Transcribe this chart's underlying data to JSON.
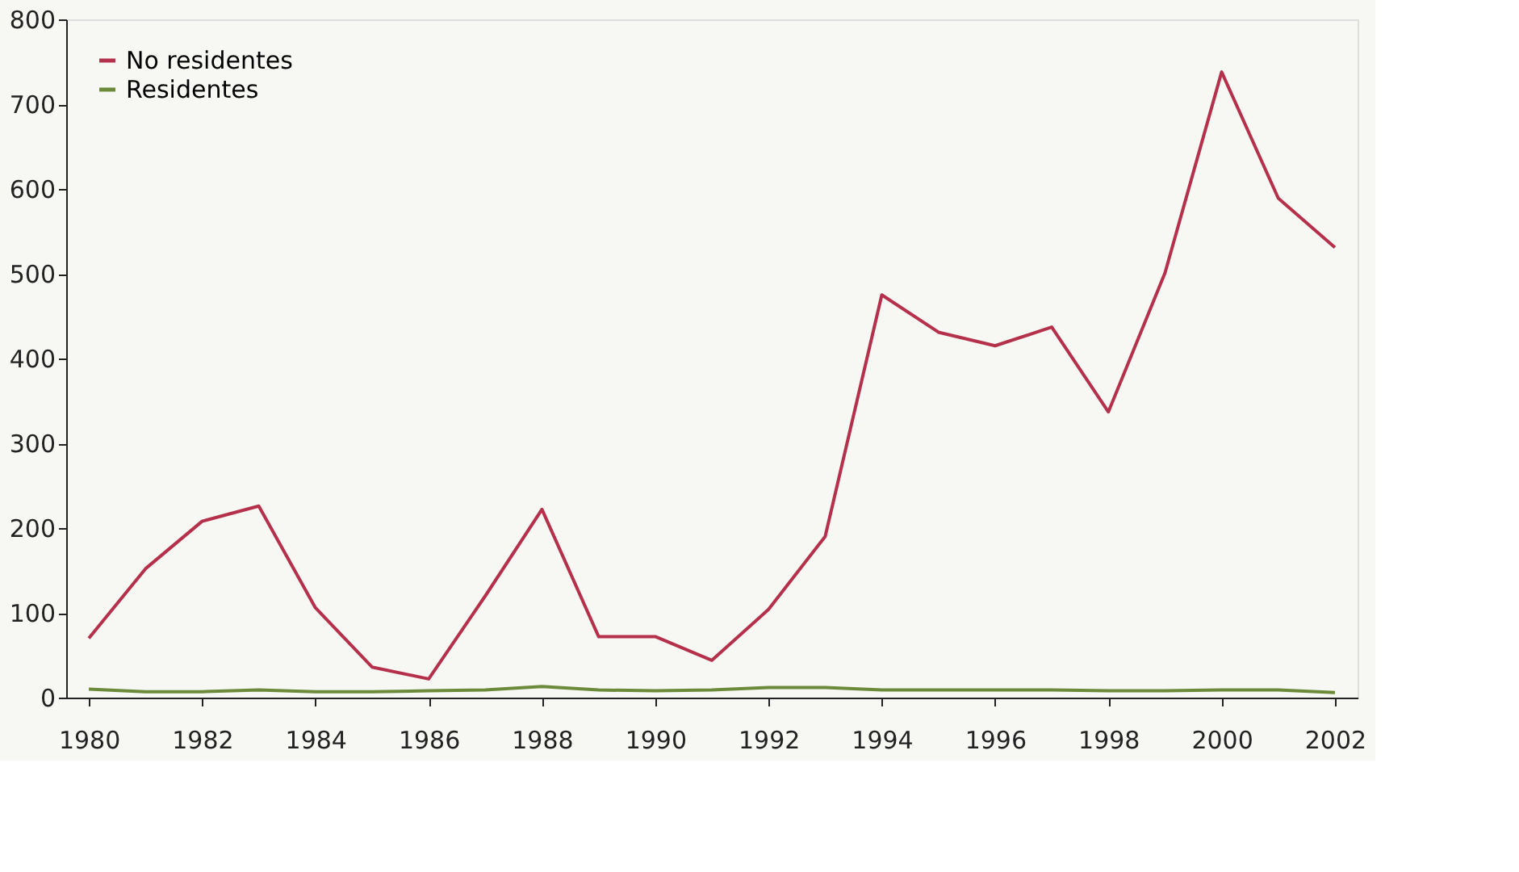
{
  "chart_data": {
    "type": "line",
    "x": [
      1980,
      1981,
      1982,
      1983,
      1984,
      1985,
      1986,
      1987,
      1988,
      1989,
      1990,
      1991,
      1992,
      1993,
      1994,
      1995,
      1996,
      1997,
      1998,
      1999,
      2000,
      2001,
      2002
    ],
    "series": [
      {
        "name": "No residentes",
        "color": "#b5304a",
        "values": [
          70,
          152,
          208,
          226,
          106,
          36,
          22,
          120,
          222,
          72,
          72,
          44,
          104,
          190,
          475,
          431,
          415,
          437,
          337,
          501,
          738,
          589,
          531
        ]
      },
      {
        "name": "Residentes",
        "color": "#6b8a3a",
        "values": [
          10,
          7,
          7,
          9,
          7,
          7,
          8,
          9,
          13,
          9,
          8,
          9,
          12,
          12,
          9,
          9,
          9,
          9,
          8,
          8,
          9,
          9,
          6
        ]
      }
    ],
    "xlim": [
      1979.6,
      2002.4
    ],
    "xticks": [
      1980,
      1982,
      1984,
      1986,
      1988,
      1990,
      1992,
      1994,
      1996,
      1998,
      2000,
      2002
    ],
    "ylim": [
      0,
      800
    ],
    "yticks": [
      0,
      100,
      200,
      300,
      400,
      500,
      600,
      700,
      800
    ],
    "grid": false,
    "legend": "top left",
    "marker": "none",
    "line_style": "solid"
  }
}
